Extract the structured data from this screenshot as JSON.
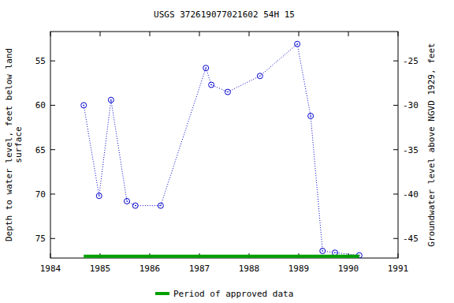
{
  "chart_data": {
    "type": "scatter",
    "title": "USGS 372619077021602 54H 15",
    "y_label": [
      "Depth to water level, feet below land",
      "surface"
    ],
    "y2_label": "Groundwater level above NGVD 1929, feet",
    "xlim": [
      1984,
      1991
    ],
    "xticks": [
      1984,
      1985,
      1986,
      1987,
      1988,
      1989,
      1990,
      1991
    ],
    "ylim": [
      77.2,
      51.7
    ],
    "yticks": [
      55,
      60,
      65,
      70,
      75
    ],
    "y2lim": [
      -47.2,
      -21.7
    ],
    "y2ticks": [
      -25,
      -30,
      -35,
      -40,
      -45
    ],
    "grid": false,
    "legend": "bottom",
    "series": [
      {
        "color": "#0000cc",
        "marker": "circle",
        "line_style": "dotted",
        "type": "scatter",
        "x": [
          1984.67,
          1984.98,
          1985.22,
          1985.54,
          1985.71,
          1986.22,
          1987.13,
          1987.24,
          1987.57,
          1988.22,
          1988.97,
          1989.24,
          1989.48,
          1989.73,
          1990.22
        ],
        "values": [
          60.0,
          70.2,
          59.4,
          70.8,
          71.3,
          71.3,
          55.8,
          57.7,
          58.5,
          56.7,
          53.1,
          61.2,
          76.4,
          76.6,
          76.9
        ]
      },
      {
        "name": "Period of approved data",
        "color": "#00a000",
        "type": "line",
        "line_style": "solid",
        "x": [
          1984.67,
          1990.22
        ],
        "values": [
          77.0,
          77.0
        ]
      }
    ]
  }
}
